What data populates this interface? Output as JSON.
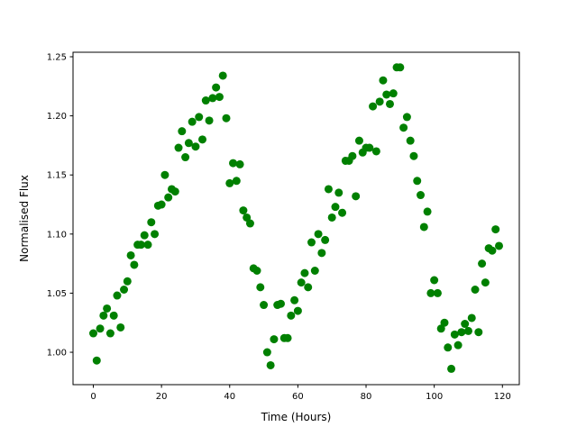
{
  "chart_data": {
    "type": "scatter",
    "title": "",
    "xlabel": "Time (Hours)",
    "ylabel": "Normalised Flux",
    "xlim": [
      -5.95,
      124.95
    ],
    "ylim": [
      0.9726,
      1.2538
    ],
    "xticks": [
      0,
      20,
      40,
      60,
      80,
      100,
      120
    ],
    "xtick_labels": [
      "0",
      "20",
      "40",
      "60",
      "80",
      "100",
      "120"
    ],
    "yticks": [
      1.0,
      1.05,
      1.1,
      1.15,
      1.2,
      1.25
    ],
    "ytick_labels": [
      "1.00",
      "1.05",
      "1.10",
      "1.15",
      "1.20",
      "1.25"
    ],
    "grid": false,
    "marker_color": "#008000",
    "x": [
      0,
      1,
      2,
      3,
      4,
      5,
      6,
      7,
      8,
      9,
      10,
      11,
      12,
      13,
      14,
      15,
      16,
      17,
      18,
      19,
      20,
      21,
      22,
      23,
      24,
      25,
      26,
      27,
      28,
      29,
      30,
      31,
      32,
      33,
      34,
      35,
      36,
      37,
      38,
      39,
      40,
      41,
      42,
      43,
      44,
      45,
      46,
      47,
      48,
      49,
      50,
      51,
      52,
      53,
      54,
      55,
      56,
      57,
      58,
      59,
      60,
      61,
      62,
      63,
      64,
      65,
      66,
      67,
      68,
      69,
      70,
      71,
      72,
      73,
      74,
      75,
      76,
      77,
      78,
      79,
      80,
      81,
      82,
      83,
      84,
      85,
      86,
      87,
      88,
      89,
      90,
      91,
      92,
      93,
      94,
      95,
      96,
      97,
      98,
      99,
      100,
      101,
      102,
      103,
      104,
      105,
      106,
      107,
      108,
      109,
      110,
      111,
      112,
      113,
      114,
      115,
      116,
      117,
      118,
      119
    ],
    "y": [
      1.016,
      0.993,
      1.02,
      1.031,
      1.037,
      1.016,
      1.031,
      1.048,
      1.021,
      1.053,
      1.06,
      1.082,
      1.074,
      1.091,
      1.091,
      1.099,
      1.091,
      1.11,
      1.1,
      1.124,
      1.125,
      1.15,
      1.131,
      1.138,
      1.136,
      1.173,
      1.187,
      1.165,
      1.177,
      1.195,
      1.174,
      1.199,
      1.18,
      1.213,
      1.196,
      1.215,
      1.224,
      1.216,
      1.234,
      1.198,
      1.143,
      1.16,
      1.145,
      1.159,
      1.12,
      1.114,
      1.109,
      1.071,
      1.069,
      1.055,
      1.04,
      1.0,
      0.989,
      1.011,
      1.04,
      1.041,
      1.012,
      1.012,
      1.031,
      1.044,
      1.035,
      1.059,
      1.067,
      1.055,
      1.093,
      1.069,
      1.1,
      1.084,
      1.095,
      1.138,
      1.114,
      1.123,
      1.135,
      1.118,
      1.162,
      1.162,
      1.166,
      1.132,
      1.179,
      1.169,
      1.173,
      1.173,
      1.208,
      1.17,
      1.212,
      1.23,
      1.218,
      1.21,
      1.219,
      1.241,
      1.241,
      1.19,
      1.199,
      1.179,
      1.166,
      1.145,
      1.133,
      1.106,
      1.119,
      1.05,
      1.061,
      1.05,
      1.02,
      1.025,
      1.004,
      0.986,
      1.015,
      1.006,
      1.017,
      1.024,
      1.018,
      1.029,
      1.053,
      1.017,
      1.075,
      1.059,
      1.088,
      1.086,
      1.104,
      1.09
    ]
  }
}
